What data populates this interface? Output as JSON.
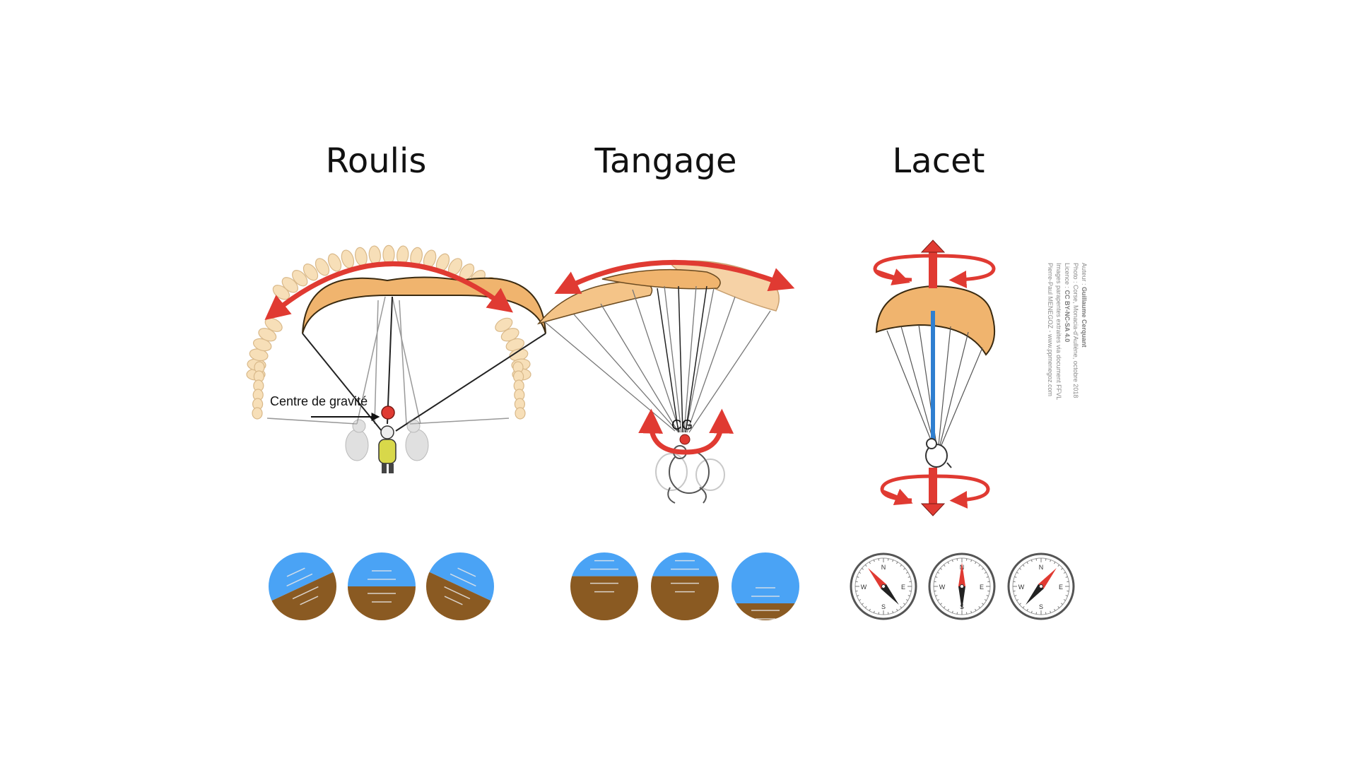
{
  "titles": {
    "roll": "Roulis",
    "pitch": "Tangage",
    "yaw": "Lacet"
  },
  "labels": {
    "center_of_gravity": "Centre de gravité",
    "cg": "CG"
  },
  "compass_letters": {
    "n": "N",
    "e": "E",
    "s": "S",
    "w": "W"
  },
  "credits": {
    "line1_prefix": "Auteur : ",
    "line1_name": "Guillaume Cerquant",
    "line2": "Photo : Corse, Monacia-d'Aullène, octobre 2018",
    "line3_prefix": "Licence : ",
    "line3_license": "CC BY-NC-SA 4.0",
    "line4": "Images parapentes extraites via document FFVL",
    "line5": "Pierre-Paul MENEGOZ - www.ppmenegoz.com"
  },
  "colors": {
    "arrow_red": "#e03a32",
    "sky_blue": "#4aa3f5",
    "ground_brown": "#8a5a22",
    "wing_orange": "#f0b46e",
    "wing_light": "#f6d2a6",
    "cell_fill": "#f7dfb8",
    "yaw_axis_blue": "#2f7fd0"
  },
  "attitude_indicators": {
    "roll_deg": [
      -25,
      0,
      25
    ],
    "pitch_horizon_fraction": [
      0.35,
      0.35,
      0.75
    ]
  },
  "compass_needle_rotation_deg": [
    -40,
    0,
    40
  ]
}
